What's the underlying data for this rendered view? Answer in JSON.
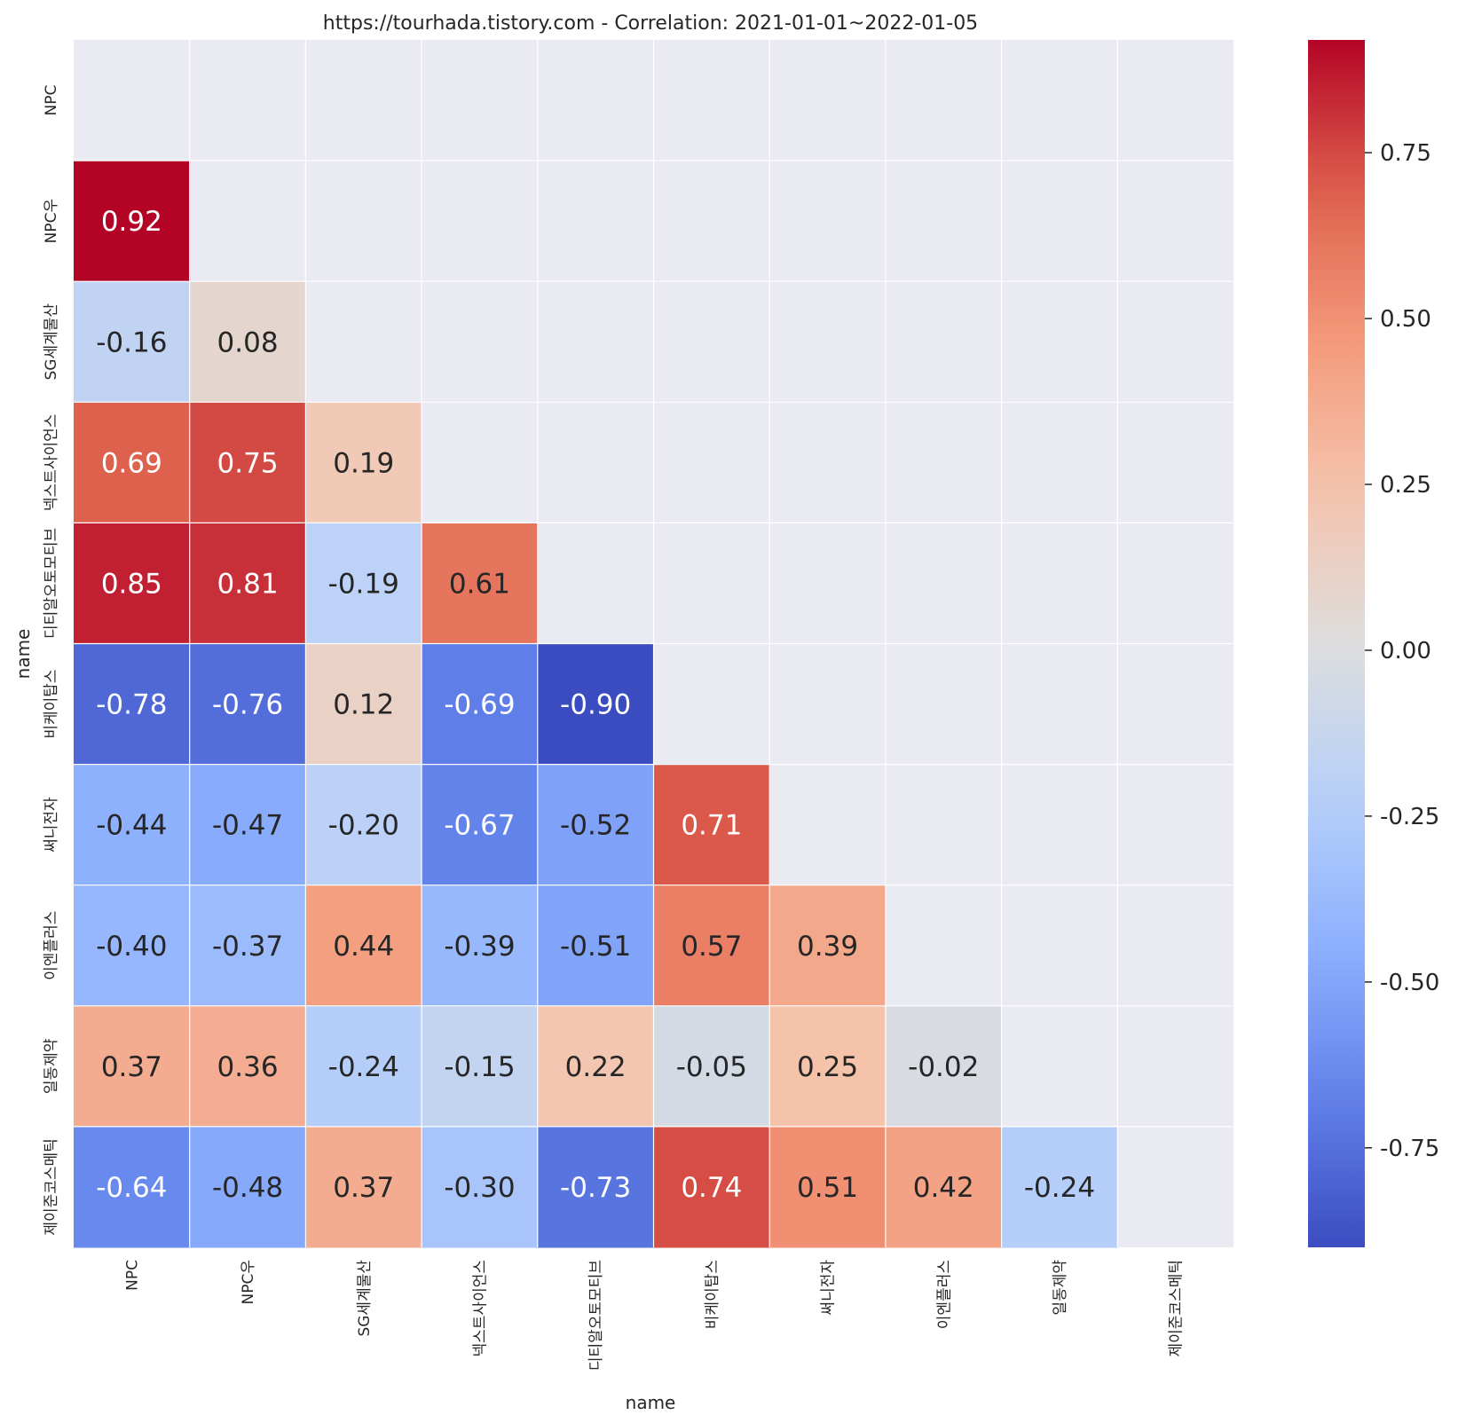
{
  "chart_data": {
    "type": "heatmap",
    "title": "https://tourhada.tistory.com - Correlation: 2021-01-01~2022-01-05",
    "xlabel": "name",
    "ylabel": "name",
    "labels": [
      "NPC",
      "NPC우",
      "SG세계물산",
      "넥스트사이언스",
      "디티알오토모티브",
      "비케이탑스",
      "써니전자",
      "이엔플러스",
      "일동제약",
      "제이준코스메틱"
    ],
    "matrix": [
      [
        null,
        null,
        null,
        null,
        null,
        null,
        null,
        null,
        null,
        null
      ],
      [
        0.92,
        null,
        null,
        null,
        null,
        null,
        null,
        null,
        null,
        null
      ],
      [
        -0.16,
        0.08,
        null,
        null,
        null,
        null,
        null,
        null,
        null,
        null
      ],
      [
        0.69,
        0.75,
        0.19,
        null,
        null,
        null,
        null,
        null,
        null,
        null
      ],
      [
        0.85,
        0.81,
        -0.19,
        0.61,
        null,
        null,
        null,
        null,
        null,
        null
      ],
      [
        -0.78,
        -0.76,
        0.12,
        -0.69,
        -0.9,
        null,
        null,
        null,
        null,
        null
      ],
      [
        -0.44,
        -0.47,
        -0.2,
        -0.67,
        -0.52,
        0.71,
        null,
        null,
        null,
        null
      ],
      [
        -0.4,
        -0.37,
        0.44,
        -0.39,
        -0.51,
        0.57,
        0.39,
        null,
        null,
        null
      ],
      [
        0.37,
        0.36,
        -0.24,
        -0.15,
        0.22,
        -0.05,
        0.25,
        -0.02,
        null,
        null
      ],
      [
        -0.64,
        -0.48,
        0.37,
        -0.3,
        -0.73,
        0.74,
        0.51,
        0.42,
        -0.24,
        null
      ]
    ],
    "mask": "upper-triangle",
    "colormap": "coolwarm",
    "vmin": -0.9,
    "vmax": 0.92,
    "colorbar_ticks": [
      0.75,
      0.5,
      0.25,
      0.0,
      -0.25,
      -0.5,
      -0.75
    ],
    "colorbar_tick_labels": [
      "0.75",
      "0.50",
      "0.25",
      "0.00",
      "-0.25",
      "-0.50",
      "-0.75"
    ],
    "background_color": "#eaeaf2",
    "grid_line_color": "#ffffff"
  }
}
